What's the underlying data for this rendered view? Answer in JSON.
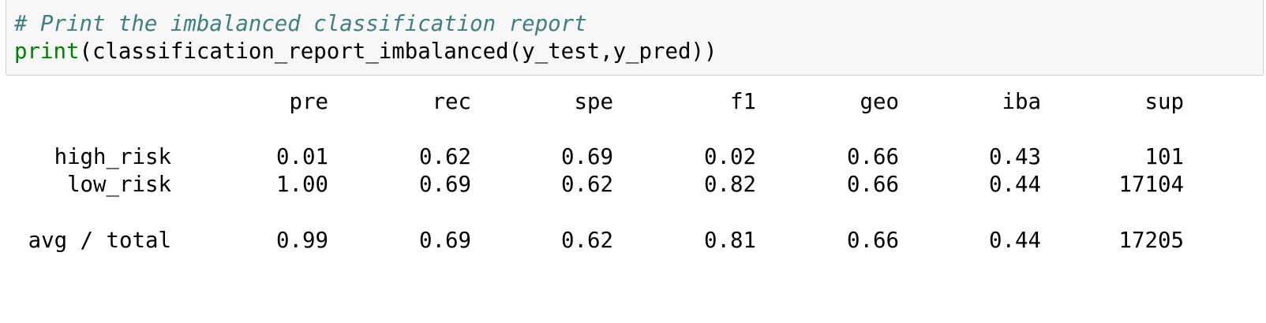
{
  "code_cell": {
    "comment": "# Print the imbalanced classification report",
    "builtin": "print",
    "args": "(classification_report_imbalanced(y_test,y_pred))"
  },
  "report": {
    "columns": [
      "pre",
      "rec",
      "spe",
      "f1",
      "geo",
      "iba",
      "sup"
    ],
    "rows": [
      {
        "label": "high_risk",
        "values": [
          "0.01",
          "0.62",
          "0.69",
          "0.02",
          "0.66",
          "0.43",
          "101"
        ]
      },
      {
        "label": "low_risk",
        "values": [
          "1.00",
          "0.69",
          "0.62",
          "0.82",
          "0.66",
          "0.44",
          "17104"
        ]
      }
    ],
    "total": {
      "label": "avg / total",
      "values": [
        "0.99",
        "0.69",
        "0.62",
        "0.81",
        "0.66",
        "0.44",
        "17205"
      ]
    }
  }
}
